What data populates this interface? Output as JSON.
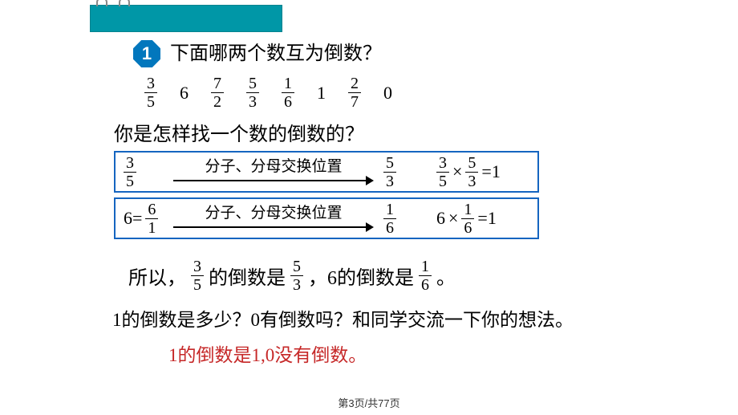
{
  "badge": "1",
  "question_title": "下面哪两个数互为倒数？",
  "number_row": [
    {
      "type": "frac",
      "n": "3",
      "d": "5"
    },
    {
      "type": "whole",
      "v": "6"
    },
    {
      "type": "frac",
      "n": "7",
      "d": "2"
    },
    {
      "type": "frac",
      "n": "5",
      "d": "3"
    },
    {
      "type": "frac",
      "n": "1",
      "d": "6"
    },
    {
      "type": "whole",
      "v": "1"
    },
    {
      "type": "frac",
      "n": "2",
      "d": "7"
    },
    {
      "type": "whole",
      "v": "0"
    }
  ],
  "method_q": "你是怎样找一个数的倒数的？",
  "arrow_label": "分子、分母交换位置",
  "box1": {
    "left_prefix": "",
    "left_frac": {
      "n": "3",
      "d": "5"
    },
    "result_frac": {
      "n": "5",
      "d": "3"
    },
    "verify": {
      "a": {
        "n": "3",
        "d": "5"
      },
      "op": "×",
      "b": {
        "n": "5",
        "d": "3"
      },
      "eq": "=1"
    }
  },
  "box2": {
    "left_prefix": "6=",
    "left_frac": {
      "n": "6",
      "d": "1"
    },
    "result_frac": {
      "n": "1",
      "d": "6"
    },
    "verify": {
      "a_whole": "6",
      "op": "×",
      "b": {
        "n": "1",
        "d": "6"
      },
      "eq": "=1"
    }
  },
  "conclusion": {
    "t1": "所以，",
    "f1": {
      "n": "3",
      "d": "5"
    },
    "t2": " 的倒数是 ",
    "f2": {
      "n": "5",
      "d": "3"
    },
    "t3": " ，6的倒数是 ",
    "f3": {
      "n": "1",
      "d": "6"
    },
    "t4": " 。"
  },
  "question2": "1的倒数是多少？0有倒数吗？和同学交流一下你的想法。",
  "answer": "1的倒数是1,0没有倒数。",
  "pager": "第3页/共77页",
  "colors": {
    "binder": "#0097a7",
    "octagon": "#0277bd",
    "box_border": "#1565c0",
    "answer_text": "#c62828"
  }
}
